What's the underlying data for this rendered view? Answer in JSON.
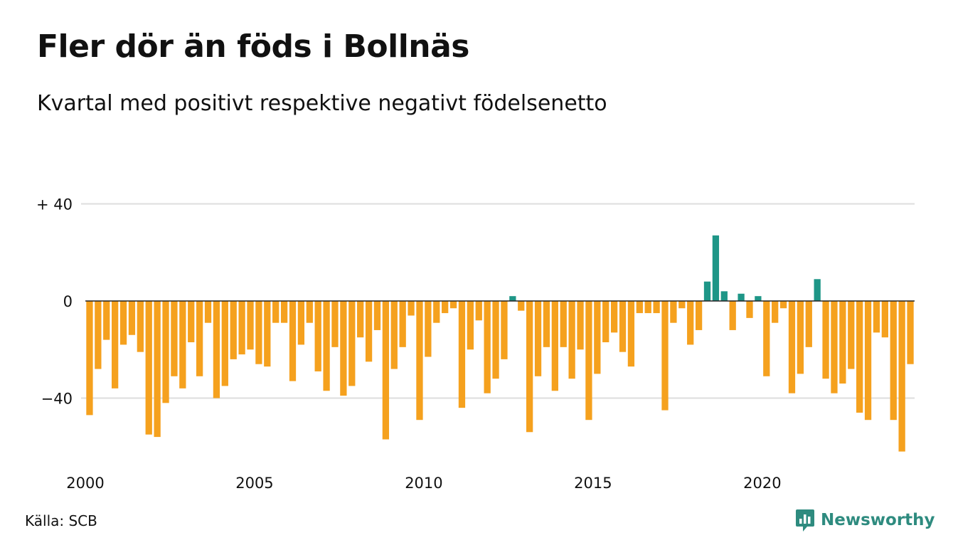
{
  "title": "Fler dör än föds i Bollnäs",
  "subtitle": "Kvartal med positivt respektive negativt födelsenetto",
  "source": "Källa: SCB",
  "brand": "Newsworthy",
  "colors": {
    "negative": "#F5A11E",
    "positive": "#1E9687",
    "grid": "#dedede",
    "brand": "#2e8b7f"
  },
  "chart_data": {
    "type": "bar",
    "x_start": "2000Q1",
    "period": "quarter",
    "ylim": [
      -62,
      40
    ],
    "yticks": [
      40,
      0,
      -40
    ],
    "ytick_labels": [
      "+ 40",
      "0",
      "−40"
    ],
    "xtick_labels": [
      "2000",
      "2005",
      "2010",
      "2015",
      "2020"
    ],
    "grid": true,
    "values": [
      -47,
      -28,
      -16,
      -36,
      -18,
      -14,
      -21,
      -55,
      -56,
      -42,
      -31,
      -36,
      -17,
      -31,
      -9,
      -40,
      -35,
      -24,
      -22,
      -20,
      -26,
      -27,
      -9,
      -9,
      -33,
      -18,
      -9,
      -29,
      -37,
      -19,
      -39,
      -35,
      -15,
      -25,
      -12,
      -57,
      -28,
      -19,
      -6,
      -49,
      -23,
      -9,
      -5,
      -3,
      -44,
      -20,
      -8,
      -38,
      -32,
      -24,
      2,
      -4,
      -54,
      -31,
      -19,
      -37,
      -19,
      -32,
      -20,
      -49,
      -30,
      -17,
      -13,
      -21,
      -27,
      -5,
      -5,
      -5,
      -45,
      -9,
      -3,
      -18,
      -12,
      8,
      27,
      4,
      -12,
      3,
      -7,
      2,
      -31,
      -9,
      -3,
      -38,
      -30,
      -19,
      9,
      -32,
      -38,
      -34,
      -28,
      -46,
      -49,
      -13,
      -15,
      -49,
      -62,
      -26
    ]
  }
}
